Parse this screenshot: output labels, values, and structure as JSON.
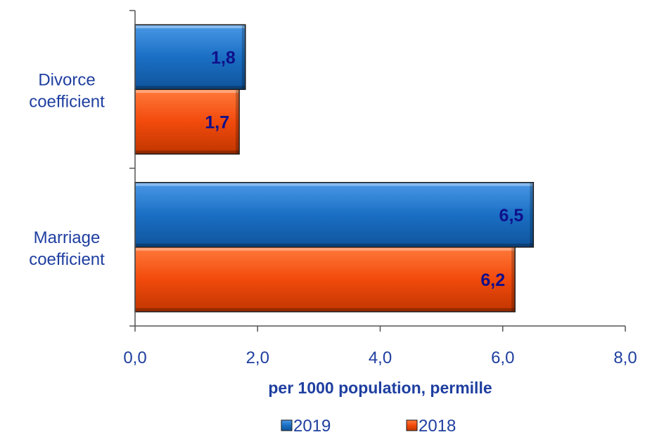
{
  "chart_data": {
    "type": "bar",
    "orientation": "horizontal",
    "categories": [
      "Divorce coefficient",
      "Marriage coefficient"
    ],
    "category_lines": [
      [
        "Divorce",
        "coefficient"
      ],
      [
        "Marriage",
        "coefficient"
      ]
    ],
    "series": [
      {
        "name": "2019",
        "values": [
          1.8,
          6.5
        ],
        "labels": [
          "1,8",
          "6,5"
        ],
        "color": "#1a6fc4"
      },
      {
        "name": "2018",
        "values": [
          1.7,
          6.2
        ],
        "labels": [
          "1,7",
          "6,2"
        ],
        "color": "#f24a0c"
      }
    ],
    "xlim": [
      0,
      8
    ],
    "xticks": [
      0,
      2,
      4,
      6,
      8
    ],
    "xtick_labels": [
      "0,0",
      "2,0",
      "4,0",
      "6,0",
      "8,0"
    ],
    "xlabel": "per 1000 population, permille",
    "ylabel": "",
    "title": "",
    "legend_position": "bottom",
    "grid": false,
    "data_label_color": "#10108a",
    "axis_color": "#555555"
  }
}
